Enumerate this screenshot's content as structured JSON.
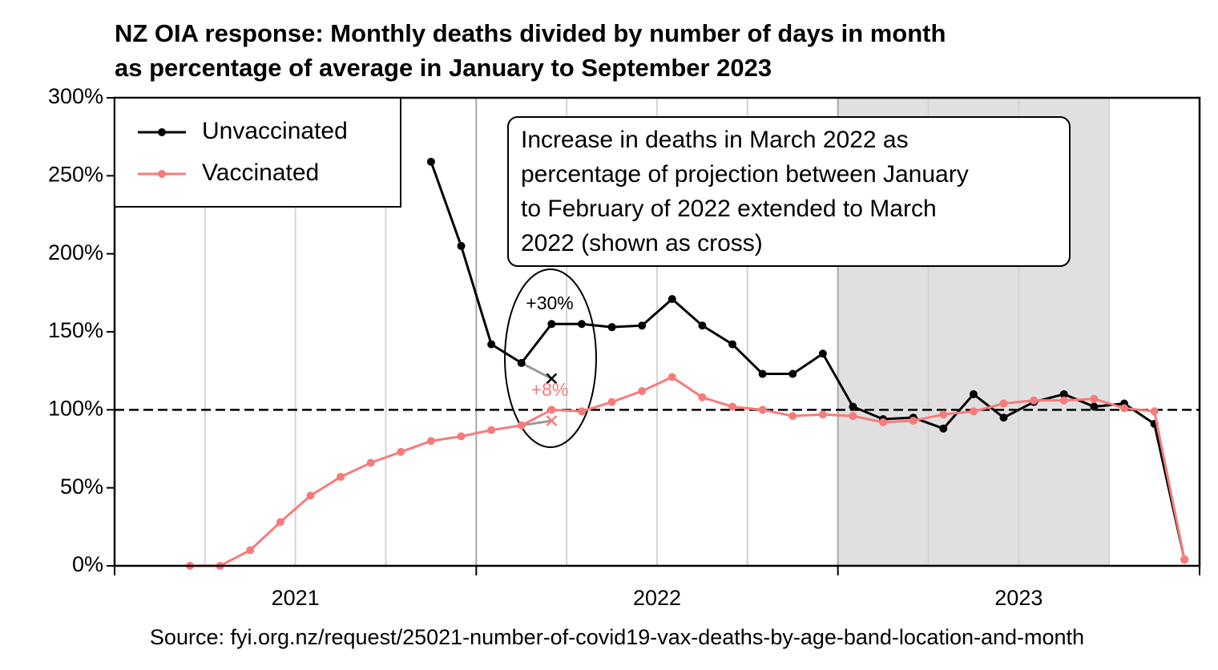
{
  "chart_data": {
    "type": "line",
    "title": [
      "NZ OIA response: Monthly deaths divided by number of days in month",
      "as percentage of average in January to September 2023"
    ],
    "source": "Source: fyi.org.nz/request/25021-number-of-covid19-vax-deaths-by-age-band-location-and-month",
    "xlim": [
      2021,
      2024
    ],
    "xticks": [
      2021,
      2022,
      2023
    ],
    "ylim": [
      0,
      300
    ],
    "yticks": [
      {
        "value": 0,
        "label": "0%"
      },
      {
        "value": 50,
        "label": "50%"
      },
      {
        "value": 100,
        "label": "100%"
      },
      {
        "value": 150,
        "label": "150%"
      },
      {
        "value": 200,
        "label": "200%"
      },
      {
        "value": 250,
        "label": "250%"
      },
      {
        "value": 300,
        "label": "300%"
      }
    ],
    "reference_line": 100,
    "shaded_range": [
      "2023-01",
      "2023-09"
    ],
    "legend": "upper left",
    "x": [
      "2021-03",
      "2021-04",
      "2021-05",
      "2021-06",
      "2021-07",
      "2021-08",
      "2021-09",
      "2021-10",
      "2021-11",
      "2021-12",
      "2022-01",
      "2022-02",
      "2022-03",
      "2022-04",
      "2022-05",
      "2022-06",
      "2022-07",
      "2022-08",
      "2022-09",
      "2022-10",
      "2022-11",
      "2022-12",
      "2023-01",
      "2023-02",
      "2023-03",
      "2023-04",
      "2023-05",
      "2023-06",
      "2023-07",
      "2023-08",
      "2023-09",
      "2023-10",
      "2023-11",
      "2023-12"
    ],
    "series": [
      {
        "name": "Unvaccinated",
        "color": "#000000",
        "values": [
          null,
          null,
          null,
          null,
          null,
          null,
          null,
          null,
          259,
          205,
          142,
          130,
          155,
          155,
          153,
          154,
          171,
          154,
          142,
          123,
          123,
          136,
          102,
          94,
          95,
          88,
          110,
          95,
          105,
          110,
          102,
          104,
          91,
          4
        ],
        "projection": {
          "x": "2022-03",
          "value": 120,
          "label": "+30%"
        }
      },
      {
        "name": "Vaccinated",
        "color": "#f77b7b",
        "values": [
          0,
          0,
          10,
          28,
          45,
          57,
          66,
          73,
          80,
          83,
          87,
          90,
          100,
          99,
          105,
          112,
          121,
          108,
          102,
          100,
          96,
          97,
          96,
          92,
          93,
          97,
          99,
          104,
          106,
          106,
          107,
          101,
          99,
          4
        ],
        "projection": {
          "x": "2022-03",
          "value": 93,
          "label": "+8%"
        }
      }
    ],
    "note": [
      "Increase in deaths in March 2022 as",
      "percentage of projection between January",
      "to February of 2022 extended to March",
      "2022 (shown as cross)"
    ]
  }
}
